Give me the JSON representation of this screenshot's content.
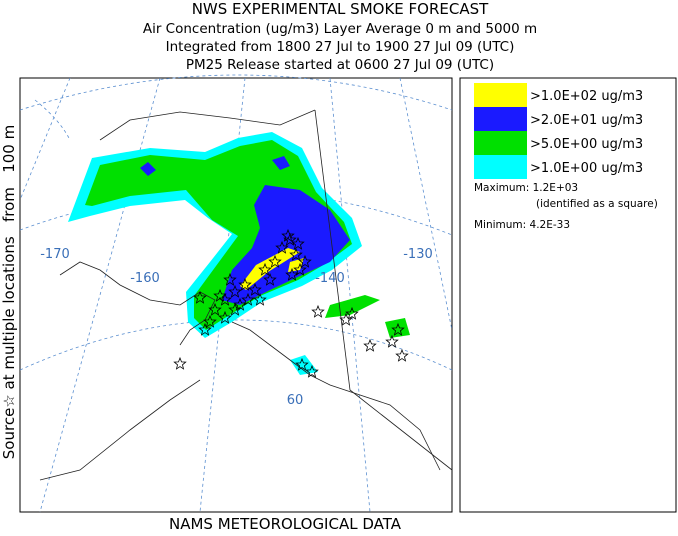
{
  "header": {
    "title": "NWS EXPERIMENTAL SMOKE FORECAST",
    "lines": [
      "Air Concentration (ug/m3) Layer Average    0 m and  5000 m",
      "Integrated from 1800 27 Jul to 1900 27 Jul 09 (UTC)",
      "PM25 Release started at 0600 27 Jul 09 (UTC)"
    ]
  },
  "side_label": "Source☆ at multiple locations   from   100 m",
  "footer": "NAMS METEOROLOGICAL DATA",
  "map": {
    "graticule_labels": [
      "-170",
      "-160",
      "-140",
      "-130",
      "60"
    ]
  },
  "legend": {
    "items": [
      {
        "label": ">1.0E+02 ug/m3",
        "color": "#ffff00"
      },
      {
        "label": ">2.0E+01 ug/m3",
        "color": "#1a1aff"
      },
      {
        "label": ">5.0E+00 ug/m3",
        "color": "#00e000"
      },
      {
        "label": ">1.0E+00 ug/m3",
        "color": "#00ffff"
      }
    ],
    "maximum": "Maximum: 1.2E+03",
    "maximum_note": "(identified as a square)",
    "minimum": "Minimum: 4.2E-33"
  }
}
